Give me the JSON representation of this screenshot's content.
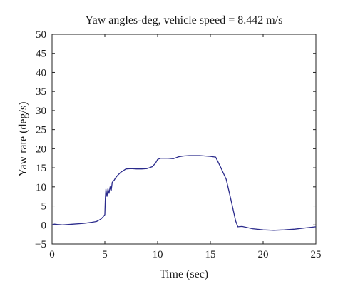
{
  "chart_data": {
    "type": "line",
    "title": "Yaw angles-deg, vehicle speed = 8.442 m/s",
    "xlabel": "Time (sec)",
    "ylabel": "Yaw rate (deg/s)",
    "xlim": [
      0,
      25
    ],
    "ylim": [
      -5,
      50
    ],
    "xticks": [
      0,
      5,
      10,
      15,
      20,
      25
    ],
    "yticks": [
      -5,
      0,
      5,
      10,
      15,
      20,
      25,
      30,
      35,
      40,
      45,
      50
    ],
    "xtick_labels": [
      "0",
      "5",
      "10",
      "15",
      "20",
      "25"
    ],
    "ytick_labels": [
      "−5",
      "0",
      "5",
      "10",
      "15",
      "20",
      "25",
      "30",
      "35",
      "40",
      "45",
      "50"
    ],
    "grid": false,
    "line_color": "#2b2b8c",
    "series": [
      {
        "x": [
          0,
          0.2,
          0.5,
          1.0,
          2.0,
          3.0,
          3.8,
          4.0,
          4.2,
          4.4,
          4.6,
          4.8,
          5.0,
          5.05,
          5.1,
          5.2,
          5.3,
          5.4,
          5.5,
          5.6,
          5.7,
          5.8,
          5.9,
          6.0,
          6.2,
          6.5,
          7.0,
          7.5,
          8.0,
          8.5,
          9.0,
          9.5,
          9.8,
          10.0,
          10.3,
          11.0,
          11.5,
          12.0,
          12.5,
          13.0,
          14.0,
          15.0,
          15.5,
          16.0,
          16.5,
          17.0,
          17.4,
          17.6,
          18.0,
          19.0,
          20.0,
          21.0,
          22.0,
          23.0,
          24.0,
          25.0
        ],
        "y": [
          0,
          0.2,
          0.1,
          0.0,
          0.2,
          0.4,
          0.7,
          0.8,
          0.9,
          1.2,
          1.5,
          2.0,
          2.7,
          7.0,
          9.4,
          7.5,
          9.5,
          8.3,
          10.0,
          9.0,
          11.2,
          11.5,
          11.8,
          12.3,
          13.0,
          13.8,
          14.7,
          14.8,
          14.7,
          14.7,
          14.8,
          15.3,
          16.2,
          17.2,
          17.5,
          17.5,
          17.4,
          17.9,
          18.1,
          18.2,
          18.2,
          18.0,
          17.8,
          15.0,
          12.0,
          6.0,
          1.0,
          -0.5,
          -0.4,
          -1.0,
          -1.3,
          -1.4,
          -1.3,
          -1.1,
          -0.8,
          -0.5
        ]
      }
    ]
  }
}
